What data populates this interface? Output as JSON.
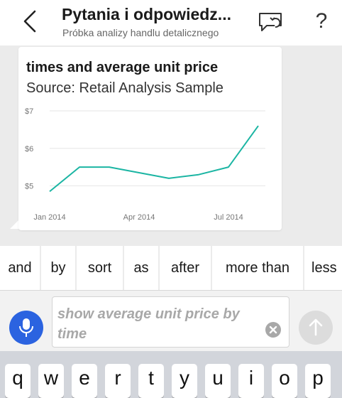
{
  "header": {
    "title": "Pytania i odpowiedz...",
    "subtitle": "Próbka analizy handlu detalicznego"
  },
  "card": {
    "title": "times and average unit price",
    "subtitle": "Source: Retail Analysis Sample"
  },
  "chart_data": {
    "type": "line",
    "title": "times and average unit price",
    "subtitle": "Source: Retail Analysis Sample",
    "x": [
      "Jan 2014",
      "Feb 2014",
      "Mar 2014",
      "Apr 2014",
      "May 2014",
      "Jun 2014",
      "Jul 2014",
      "Aug 2014"
    ],
    "x_tick_labels": [
      "Jan 2014",
      "Apr 2014",
      "Jul 2014"
    ],
    "series": [
      {
        "values": [
          4.85,
          5.5,
          5.5,
          5.35,
          5.2,
          5.3,
          5.5,
          6.6
        ],
        "color": "#1bb5a3"
      }
    ],
    "y_tick_labels": [
      "$7",
      "$6",
      "$5"
    ],
    "y_ticks": [
      7,
      6,
      5
    ],
    "ylim": [
      4.7,
      7
    ],
    "grid": true
  },
  "suggestions": [
    "and",
    "by",
    "sort",
    "as",
    "after",
    "more than",
    "less"
  ],
  "query": {
    "value": "show average unit price by time"
  },
  "keyboard": {
    "keys": [
      "q",
      "w",
      "e",
      "r",
      "t",
      "y",
      "u",
      "i",
      "o",
      "p"
    ]
  },
  "colors": {
    "accent": "#2b63e0",
    "line": "#1bb5a3"
  }
}
